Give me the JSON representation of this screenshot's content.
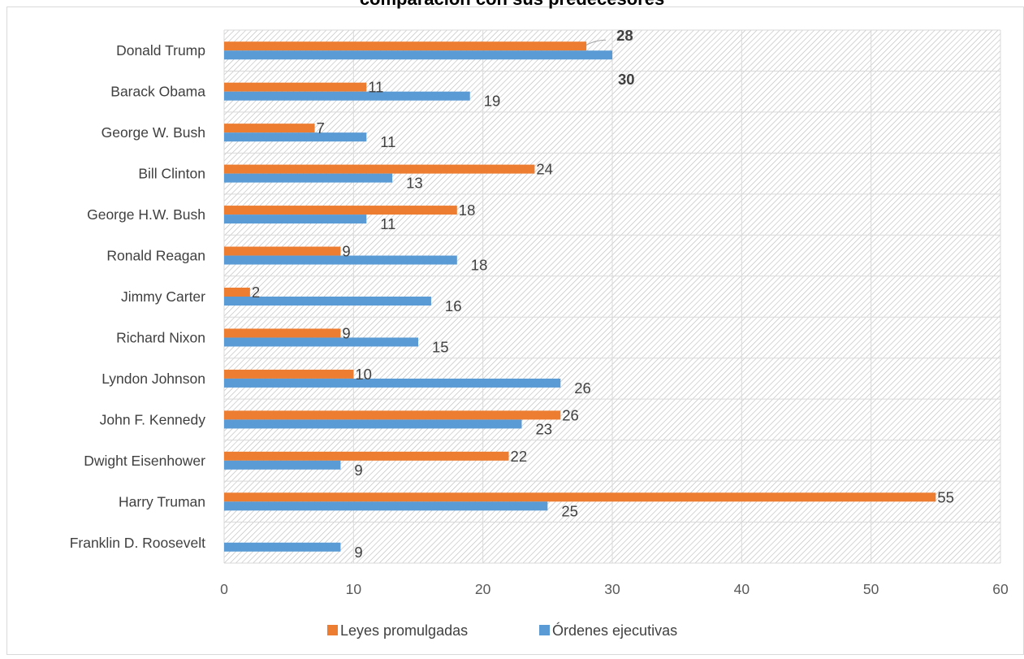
{
  "chart_data": {
    "type": "bar",
    "orientation": "horizontal",
    "title": "comparación con sus predecesores",
    "xlabel": "",
    "ylabel": "",
    "xlim": [
      0,
      60
    ],
    "x_ticks": [
      0,
      10,
      20,
      30,
      40,
      50,
      60
    ],
    "grid": true,
    "legend_position": "bottom",
    "categories": [
      "Donald Trump",
      "Barack Obama",
      "George W. Bush",
      "Bill Clinton",
      "George H.W. Bush",
      "Ronald Reagan",
      "Jimmy Carter",
      "Richard Nixon",
      "Lyndon Johnson",
      "John F. Kennedy",
      "Dwight Eisenhower",
      "Harry Truman",
      "Franklin D. Roosevelt"
    ],
    "series": [
      {
        "name": "Leyes promulgadas",
        "color": "#ED7D31",
        "values": [
          28,
          11,
          7,
          24,
          18,
          9,
          2,
          9,
          10,
          26,
          22,
          55,
          null
        ],
        "labels": [
          "28",
          "11",
          "7",
          "24",
          "18",
          "9",
          "2",
          "9",
          "10",
          "26",
          "22",
          "55",
          ""
        ]
      },
      {
        "name": "Órdenes ejecutivas",
        "color": "#5B9BD5",
        "values": [
          30,
          19,
          11,
          13,
          11,
          18,
          16,
          15,
          26,
          23,
          9,
          25,
          9
        ],
        "labels": [
          "30",
          "19",
          "11",
          "13",
          "11",
          "18",
          "16",
          "15",
          "26",
          "23",
          "9",
          "25",
          "9"
        ]
      }
    ]
  }
}
